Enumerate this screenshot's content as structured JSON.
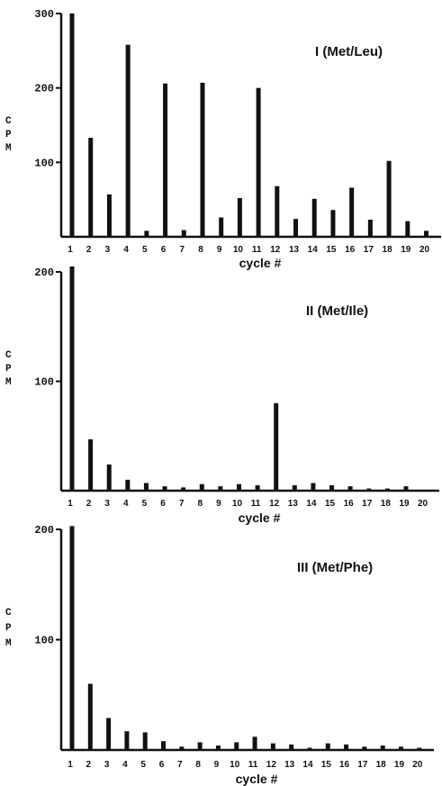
{
  "chart_data": [
    {
      "type": "bar",
      "title": "I   (Met/Leu)",
      "xlabel": "cycle  #",
      "ylabel": "CPM",
      "categories": [
        "1",
        "2",
        "3",
        "4",
        "5",
        "6",
        "7",
        "8",
        "9",
        "10",
        "11",
        "12",
        "13",
        "14",
        "15",
        "16",
        "17",
        "18",
        "19",
        "20"
      ],
      "values": [
        300,
        133,
        57,
        258,
        8,
        206,
        9,
        207,
        26,
        52,
        200,
        68,
        24,
        51,
        36,
        66,
        23,
        102,
        21,
        8
      ],
      "yticks": [
        "100",
        "200",
        "300"
      ],
      "ylim": [
        0,
        300
      ]
    },
    {
      "type": "bar",
      "title": "II   (Met/Ile)",
      "xlabel": "cycle  #",
      "ylabel": "CPM",
      "categories": [
        "1",
        "2",
        "3",
        "4",
        "5",
        "6",
        "7",
        "8",
        "9",
        "10",
        "11",
        "12",
        "13",
        "14",
        "15",
        "16",
        "17",
        "18",
        "19",
        "20"
      ],
      "values": [
        205,
        47,
        24,
        10,
        7,
        4,
        3,
        6,
        4,
        6,
        5,
        80,
        5,
        7,
        5,
        4,
        2,
        2,
        4,
        0
      ],
      "yticks": [
        "100",
        "200"
      ],
      "ylim": [
        0,
        200
      ]
    },
    {
      "type": "bar",
      "title": "III   (Met/Phe)",
      "xlabel": "cycle  #",
      "ylabel": "CPM",
      "categories": [
        "1",
        "2",
        "3",
        "4",
        "5",
        "6",
        "7",
        "8",
        "9",
        "10",
        "11",
        "12",
        "13",
        "14",
        "15",
        "16",
        "17",
        "18",
        "19",
        "20"
      ],
      "values": [
        203,
        60,
        29,
        17,
        16,
        8,
        3,
        7,
        4,
        7,
        12,
        6,
        5,
        2,
        6,
        5,
        3,
        4,
        3,
        2
      ],
      "yticks": [
        "100",
        "200"
      ],
      "ylim": [
        0,
        200
      ]
    }
  ]
}
